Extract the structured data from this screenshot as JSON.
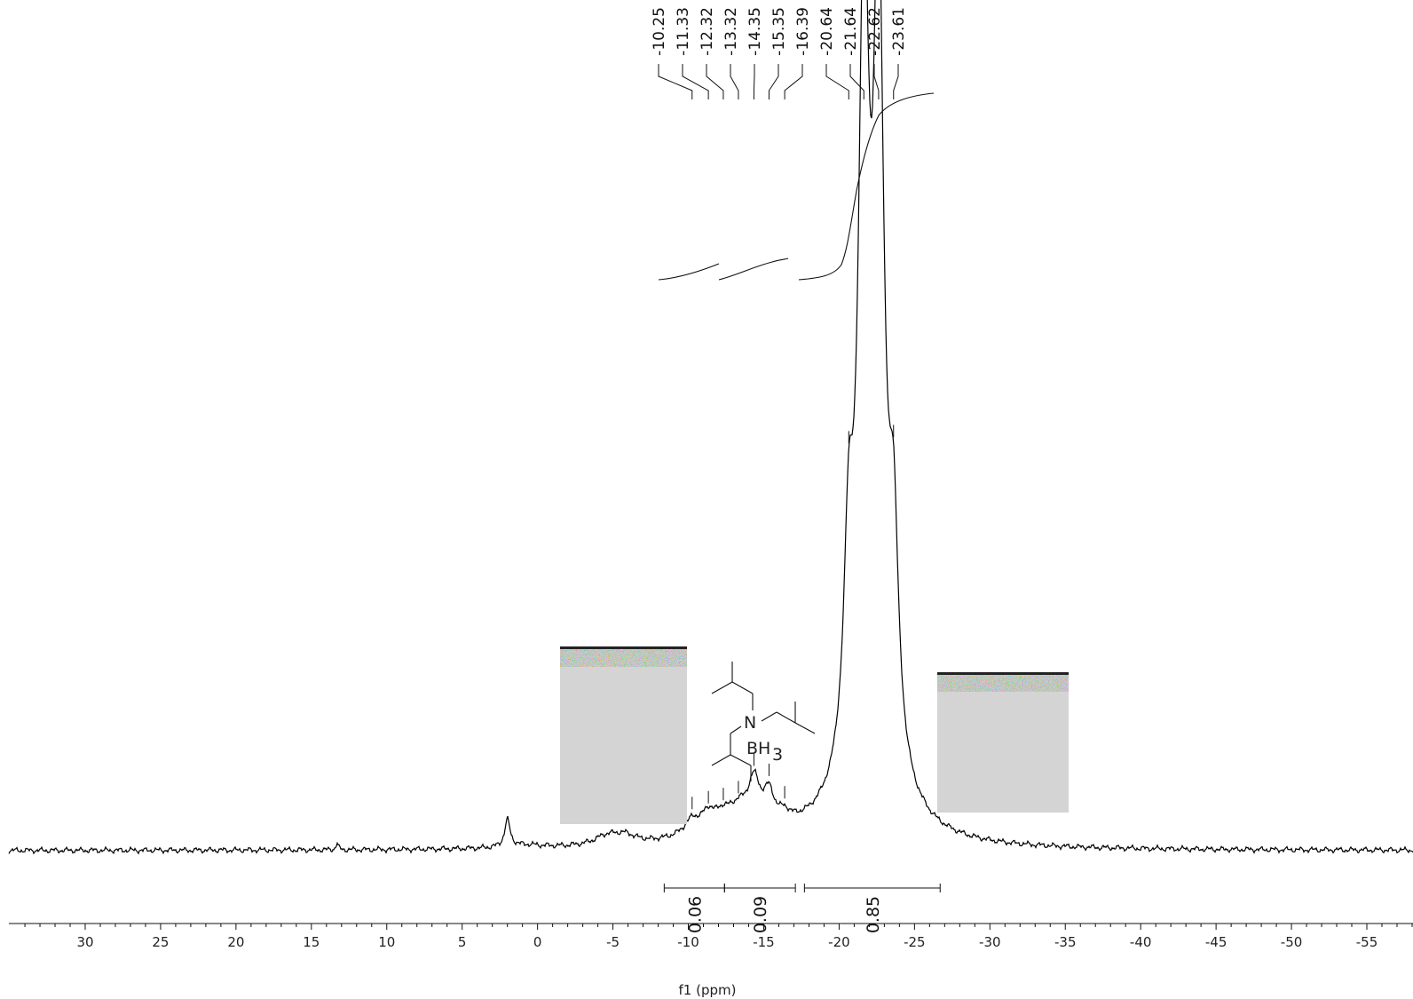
{
  "chart_data": {
    "type": "line",
    "xlabel": "f1 (ppm)",
    "xlim": [
      35,
      -59
    ],
    "x_reversed": true,
    "x_ticks": [
      30,
      25,
      20,
      15,
      10,
      5,
      0,
      -5,
      -10,
      -15,
      -20,
      -25,
      -30,
      -35,
      -40,
      -45,
      -50,
      -55
    ],
    "x_tick_labels": [
      "30",
      "25",
      "20",
      "15",
      "10",
      "5",
      "0",
      "-5",
      "-10",
      "-15",
      "-20",
      "-25",
      "-30",
      "-35",
      "-40",
      "-45",
      "-50",
      "-55"
    ],
    "grid": false,
    "line_color": "#000000",
    "peak_labels": [
      "-10.25",
      "-11.33",
      "-12.32",
      "-13.32",
      "-14.35",
      "-15.35",
      "-16.39",
      "-20.64",
      "-21.64",
      "-22.62",
      "-23.61"
    ],
    "peak_positions": [
      -10.25,
      -11.33,
      -12.32,
      -13.32,
      -14.35,
      -15.35,
      -16.39,
      -20.64,
      -21.64,
      -22.62,
      -23.61
    ],
    "signals": [
      {
        "center": -21.64,
        "relative_height": 1.0
      },
      {
        "center": -22.62,
        "relative_height": 1.0
      },
      {
        "center": -20.64,
        "relative_height": 0.39
      },
      {
        "center": -23.61,
        "relative_height": 0.4
      },
      {
        "center": -14.35,
        "relative_height": 0.095
      },
      {
        "center": -15.35,
        "relative_height": 0.075
      },
      {
        "center": -11.33,
        "relative_height": 0.05
      },
      {
        "center": 2.0,
        "relative_height": 0.04
      },
      {
        "center": -5.0,
        "relative_height": 0.02
      },
      {
        "center": 13.3,
        "relative_height": 0.007
      }
    ],
    "integrals": [
      {
        "from": -8.4,
        "to": -12.4,
        "value": "0.06"
      },
      {
        "from": -12.4,
        "to": -17.1,
        "value": "0.09"
      },
      {
        "from": -17.7,
        "to": -26.7,
        "value": "0.85"
      }
    ],
    "annotations": {
      "molecule_labels": [
        "N",
        "BH",
        "3"
      ]
    },
    "noise_patch_colors": [
      "#d4d4d4",
      "#5a7a6a"
    ]
  }
}
